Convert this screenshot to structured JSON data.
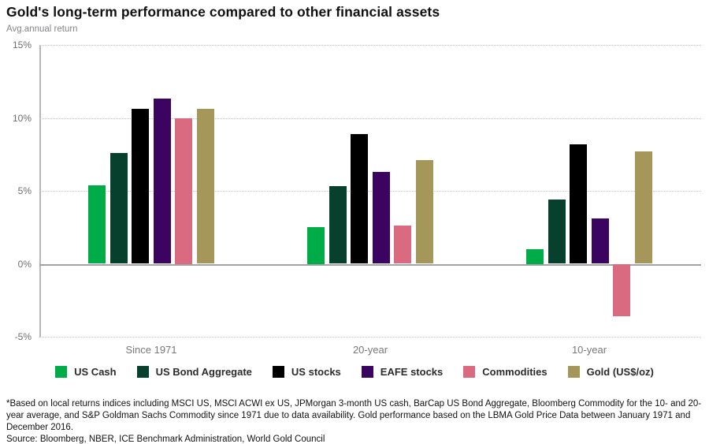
{
  "header": {
    "title": "Gold's long-term performance compared to other financial assets",
    "subtitle": "Avg.annual return"
  },
  "chart_data": {
    "type": "bar",
    "title": "Gold's long-term performance compared to other financial assets",
    "ylabel": "Avg.annual return",
    "categories": [
      "Since 1971",
      "20-year",
      "10-year"
    ],
    "series": [
      {
        "name": "US Cash",
        "color": "#00AC47",
        "values": [
          5.4,
          2.5,
          1.0
        ]
      },
      {
        "name": "US Bond Aggregate",
        "color": "#07402C",
        "values": [
          7.6,
          5.3,
          4.4
        ]
      },
      {
        "name": "US stocks",
        "color": "#000000",
        "values": [
          10.6,
          8.9,
          8.2
        ]
      },
      {
        "name": "EAFE stocks",
        "color": "#3C0461",
        "values": [
          11.3,
          6.3,
          3.1
        ]
      },
      {
        "name": "Commodities",
        "color": "#D96A80",
        "values": [
          10.0,
          2.6,
          -3.6
        ]
      },
      {
        "name": "Gold (US$/oz)",
        "color": "#A59659",
        "values": [
          10.6,
          7.1,
          7.7
        ]
      }
    ],
    "ylim": [
      -5,
      15
    ],
    "yticks": [
      15,
      10,
      5,
      0,
      -5
    ],
    "ytick_labels": [
      "15%",
      "10%",
      "5%",
      "0%",
      "-5%"
    ],
    "grid": "horizontal-dotted",
    "legend_position": "bottom"
  },
  "footnote": {
    "note": "*Based on local returns indices including MSCI US, MSCI ACWI ex US, JPMorgan 3-month US cash, BarCap US Bond Aggregate, Bloomberg Commodity for the 10- and 20-year average, and S&P Goldman Sachs Commodity since 1971 due to data availability. Gold performance based on the LBMA Gold Price Data between January 1971 and December 2016.",
    "source": "Source: Bloomberg, NBER, ICE Benchmark Administration, World Gold Council"
  }
}
